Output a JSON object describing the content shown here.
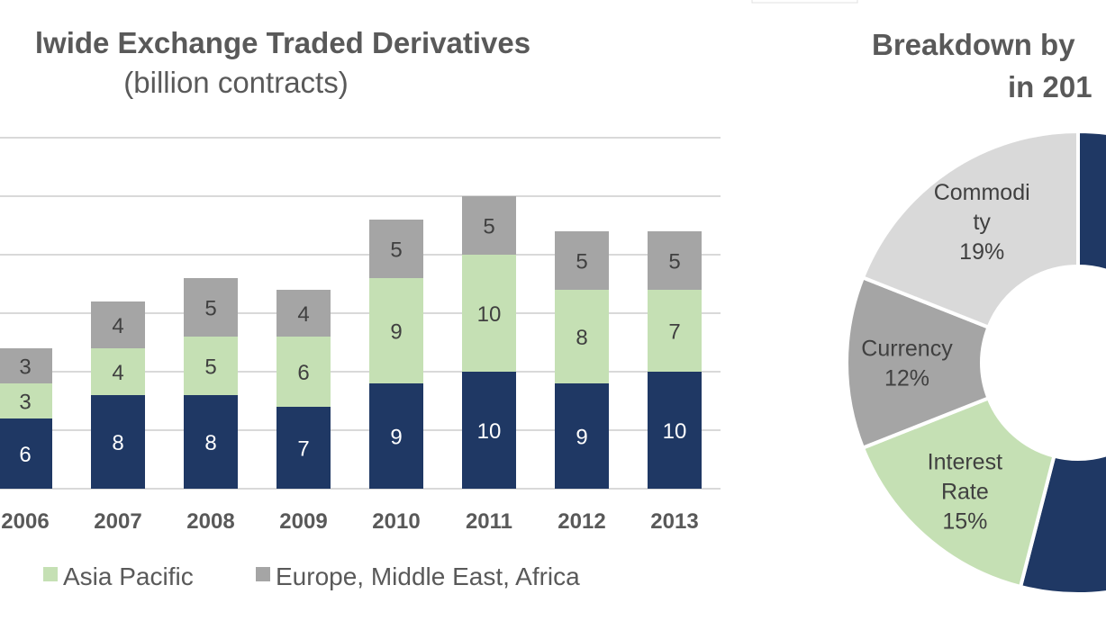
{
  "chart_data": [
    {
      "type": "bar",
      "stacked": true,
      "title": "lwide Exchange Traded Derivatives",
      "subtitle": "(billion contracts)",
      "categories": [
        "2006",
        "2007",
        "2008",
        "2009",
        "2010",
        "2011",
        "2012",
        "2013"
      ],
      "series": [
        {
          "name": "",
          "color": "#1f3864",
          "values": [
            6,
            8,
            8,
            7,
            9,
            10,
            9,
            10
          ]
        },
        {
          "name": "Asia Pacific",
          "color": "#c5e0b4",
          "values": [
            3,
            4,
            5,
            6,
            9,
            10,
            8,
            7
          ]
        },
        {
          "name": "Europe, Middle East, Africa",
          "color": "#a5a5a5",
          "values": [
            3,
            4,
            5,
            4,
            5,
            5,
            5,
            5
          ]
        }
      ],
      "ylim": [
        0,
        30
      ],
      "grid": true,
      "legend": "bottom"
    },
    {
      "type": "pie",
      "donut": true,
      "title": [
        "Breakdown by",
        "in 201"
      ],
      "slices": [
        {
          "label": [
            "Interest",
            "Rate",
            "15%"
          ],
          "value": 15,
          "color": "#c5e0b4"
        },
        {
          "label": [
            "Currency",
            "12%"
          ],
          "value": 12,
          "color": "#a5a5a5"
        },
        {
          "label": [
            "Commodi",
            "ty",
            "19%"
          ],
          "value": 19,
          "color": "#d9d9d9"
        }
      ],
      "other_color": "#1f3864"
    }
  ]
}
